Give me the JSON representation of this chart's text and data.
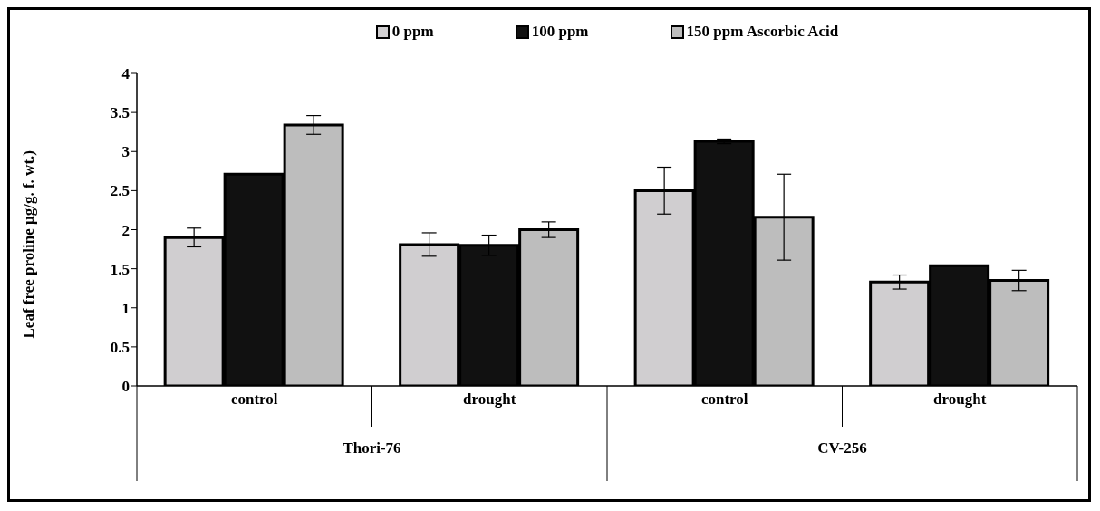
{
  "chart_data": {
    "type": "bar",
    "ylabel": "Leaf free proline  µg/g. f. wt.)",
    "categories": [
      "control",
      "drought",
      "control",
      "drought"
    ],
    "annotations": [
      "Thori-76",
      "CV-256"
    ],
    "series": [
      {
        "name": "0 ppm",
        "color": "#d0ced0",
        "values": [
          1.9,
          1.81,
          2.5,
          1.33
        ],
        "errors": [
          0.12,
          0.15,
          0.3,
          0.09
        ]
      },
      {
        "name": "100 ppm",
        "color": "#111111",
        "values": [
          2.71,
          1.8,
          3.13,
          1.54
        ],
        "errors": [
          null,
          0.13,
          0.03,
          null
        ]
      },
      {
        "name": "150 ppm Ascorbic Acid",
        "color": "#bdbdbd",
        "values": [
          3.34,
          2.0,
          2.16,
          1.35
        ],
        "errors": [
          0.12,
          0.1,
          0.55,
          0.13
        ]
      }
    ],
    "ylim": [
      0,
      4
    ],
    "yticks": [
      0,
      0.5,
      1,
      1.5,
      2,
      2.5,
      3,
      3.5,
      4
    ],
    "grid": false,
    "legend": "top"
  }
}
